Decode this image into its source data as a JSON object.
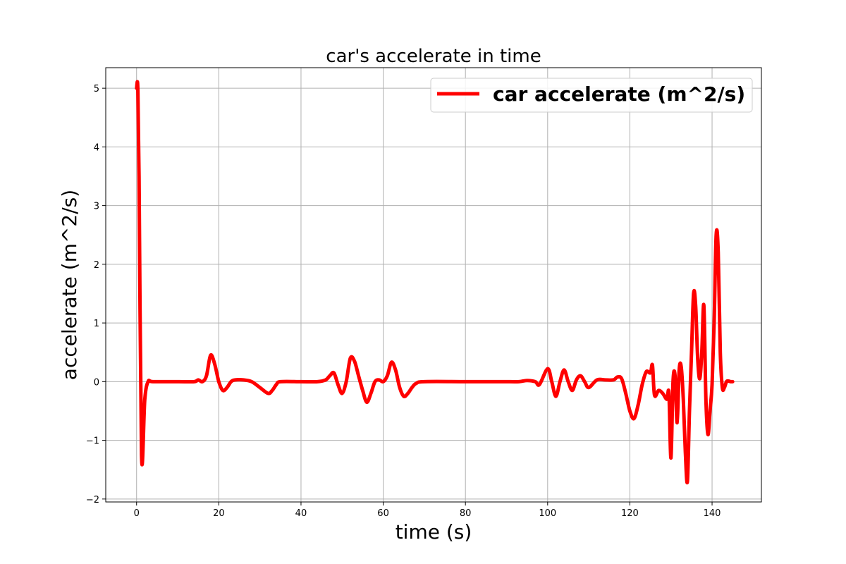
{
  "chart_data": {
    "type": "line",
    "title": "car's accelerate in time",
    "xlabel": "time (s)",
    "ylabel": "accelerate (m^2/s)",
    "xlim": [
      -7.5,
      152
    ],
    "ylim": [
      -2.05,
      5.35
    ],
    "xticks": [
      0,
      20,
      40,
      60,
      80,
      100,
      120,
      140
    ],
    "yticks": [
      -2,
      -1,
      0,
      1,
      2,
      3,
      4,
      5
    ],
    "xtick_labels": [
      "0",
      "20",
      "40",
      "60",
      "80",
      "100",
      "120",
      "140"
    ],
    "ytick_labels": [
      "−2",
      "−1",
      "0",
      "1",
      "2",
      "3",
      "4",
      "5"
    ],
    "grid": true,
    "legend_position": "top-right",
    "series": [
      {
        "name": "car accelerate (m^2/s)",
        "color": "#ff0000",
        "x": [
          0,
          0.3,
          0.6,
          1.2,
          2.0,
          2.8,
          4,
          10,
          14,
          15,
          16,
          17,
          18,
          19,
          20,
          21,
          22,
          23,
          24,
          26,
          28,
          30,
          32,
          33,
          34,
          35,
          40,
          44,
          46,
          47,
          48,
          49,
          50,
          51,
          52,
          53,
          54,
          55,
          56,
          57,
          58,
          59,
          60,
          61,
          62,
          63,
          64,
          65,
          66,
          67,
          68,
          70,
          80,
          88,
          90,
          93,
          95,
          97,
          98,
          100,
          101,
          102,
          103,
          104,
          105,
          106,
          107,
          108,
          109,
          110,
          112,
          114,
          116,
          117,
          118,
          119,
          120,
          121,
          122,
          123,
          124,
          125,
          125.5,
          126,
          127,
          128,
          129,
          129.5,
          130,
          130.5,
          131,
          131.5,
          132,
          132.5,
          133,
          133.5,
          134,
          134.5,
          135,
          135.5,
          136,
          136.5,
          137,
          137.5,
          138,
          138.5,
          139,
          139.5,
          140,
          140.5,
          141,
          141.5,
          142,
          142.5,
          143,
          143.5,
          144,
          144.5,
          145
        ],
        "y": [
          5.0,
          5.0,
          3.5,
          -1.25,
          -0.3,
          0.0,
          0.0,
          0.0,
          0.0,
          0.03,
          0.0,
          0.1,
          0.45,
          0.3,
          0.0,
          -0.15,
          -0.1,
          0.0,
          0.03,
          0.03,
          0.0,
          -0.1,
          -0.2,
          -0.15,
          -0.05,
          0.0,
          0.0,
          0.0,
          0.03,
          0.1,
          0.15,
          -0.05,
          -0.2,
          0.0,
          0.4,
          0.35,
          0.1,
          -0.15,
          -0.35,
          -0.2,
          0.0,
          0.03,
          0.0,
          0.1,
          0.33,
          0.2,
          -0.1,
          -0.25,
          -0.2,
          -0.1,
          -0.03,
          0.0,
          0.0,
          0.0,
          0.0,
          0.0,
          0.02,
          0.0,
          -0.05,
          0.22,
          0.0,
          -0.25,
          0.0,
          0.2,
          0.0,
          -0.15,
          0.03,
          0.1,
          0.0,
          -0.1,
          0.03,
          0.03,
          0.03,
          0.08,
          0.05,
          -0.2,
          -0.5,
          -0.63,
          -0.4,
          -0.05,
          0.17,
          0.15,
          0.28,
          -0.23,
          -0.15,
          -0.2,
          -0.3,
          -0.2,
          -1.3,
          0.0,
          0.1,
          -0.7,
          0.2,
          0.25,
          -0.3,
          -1.2,
          -1.7,
          -0.5,
          0.5,
          1.5,
          1.3,
          0.4,
          0.05,
          0.5,
          1.3,
          -0.3,
          -0.9,
          -0.5,
          -0.05,
          1.0,
          2.5,
          2.2,
          0.5,
          -0.1,
          -0.1,
          0.0,
          0.01,
          0.0,
          0.0
        ]
      }
    ]
  }
}
